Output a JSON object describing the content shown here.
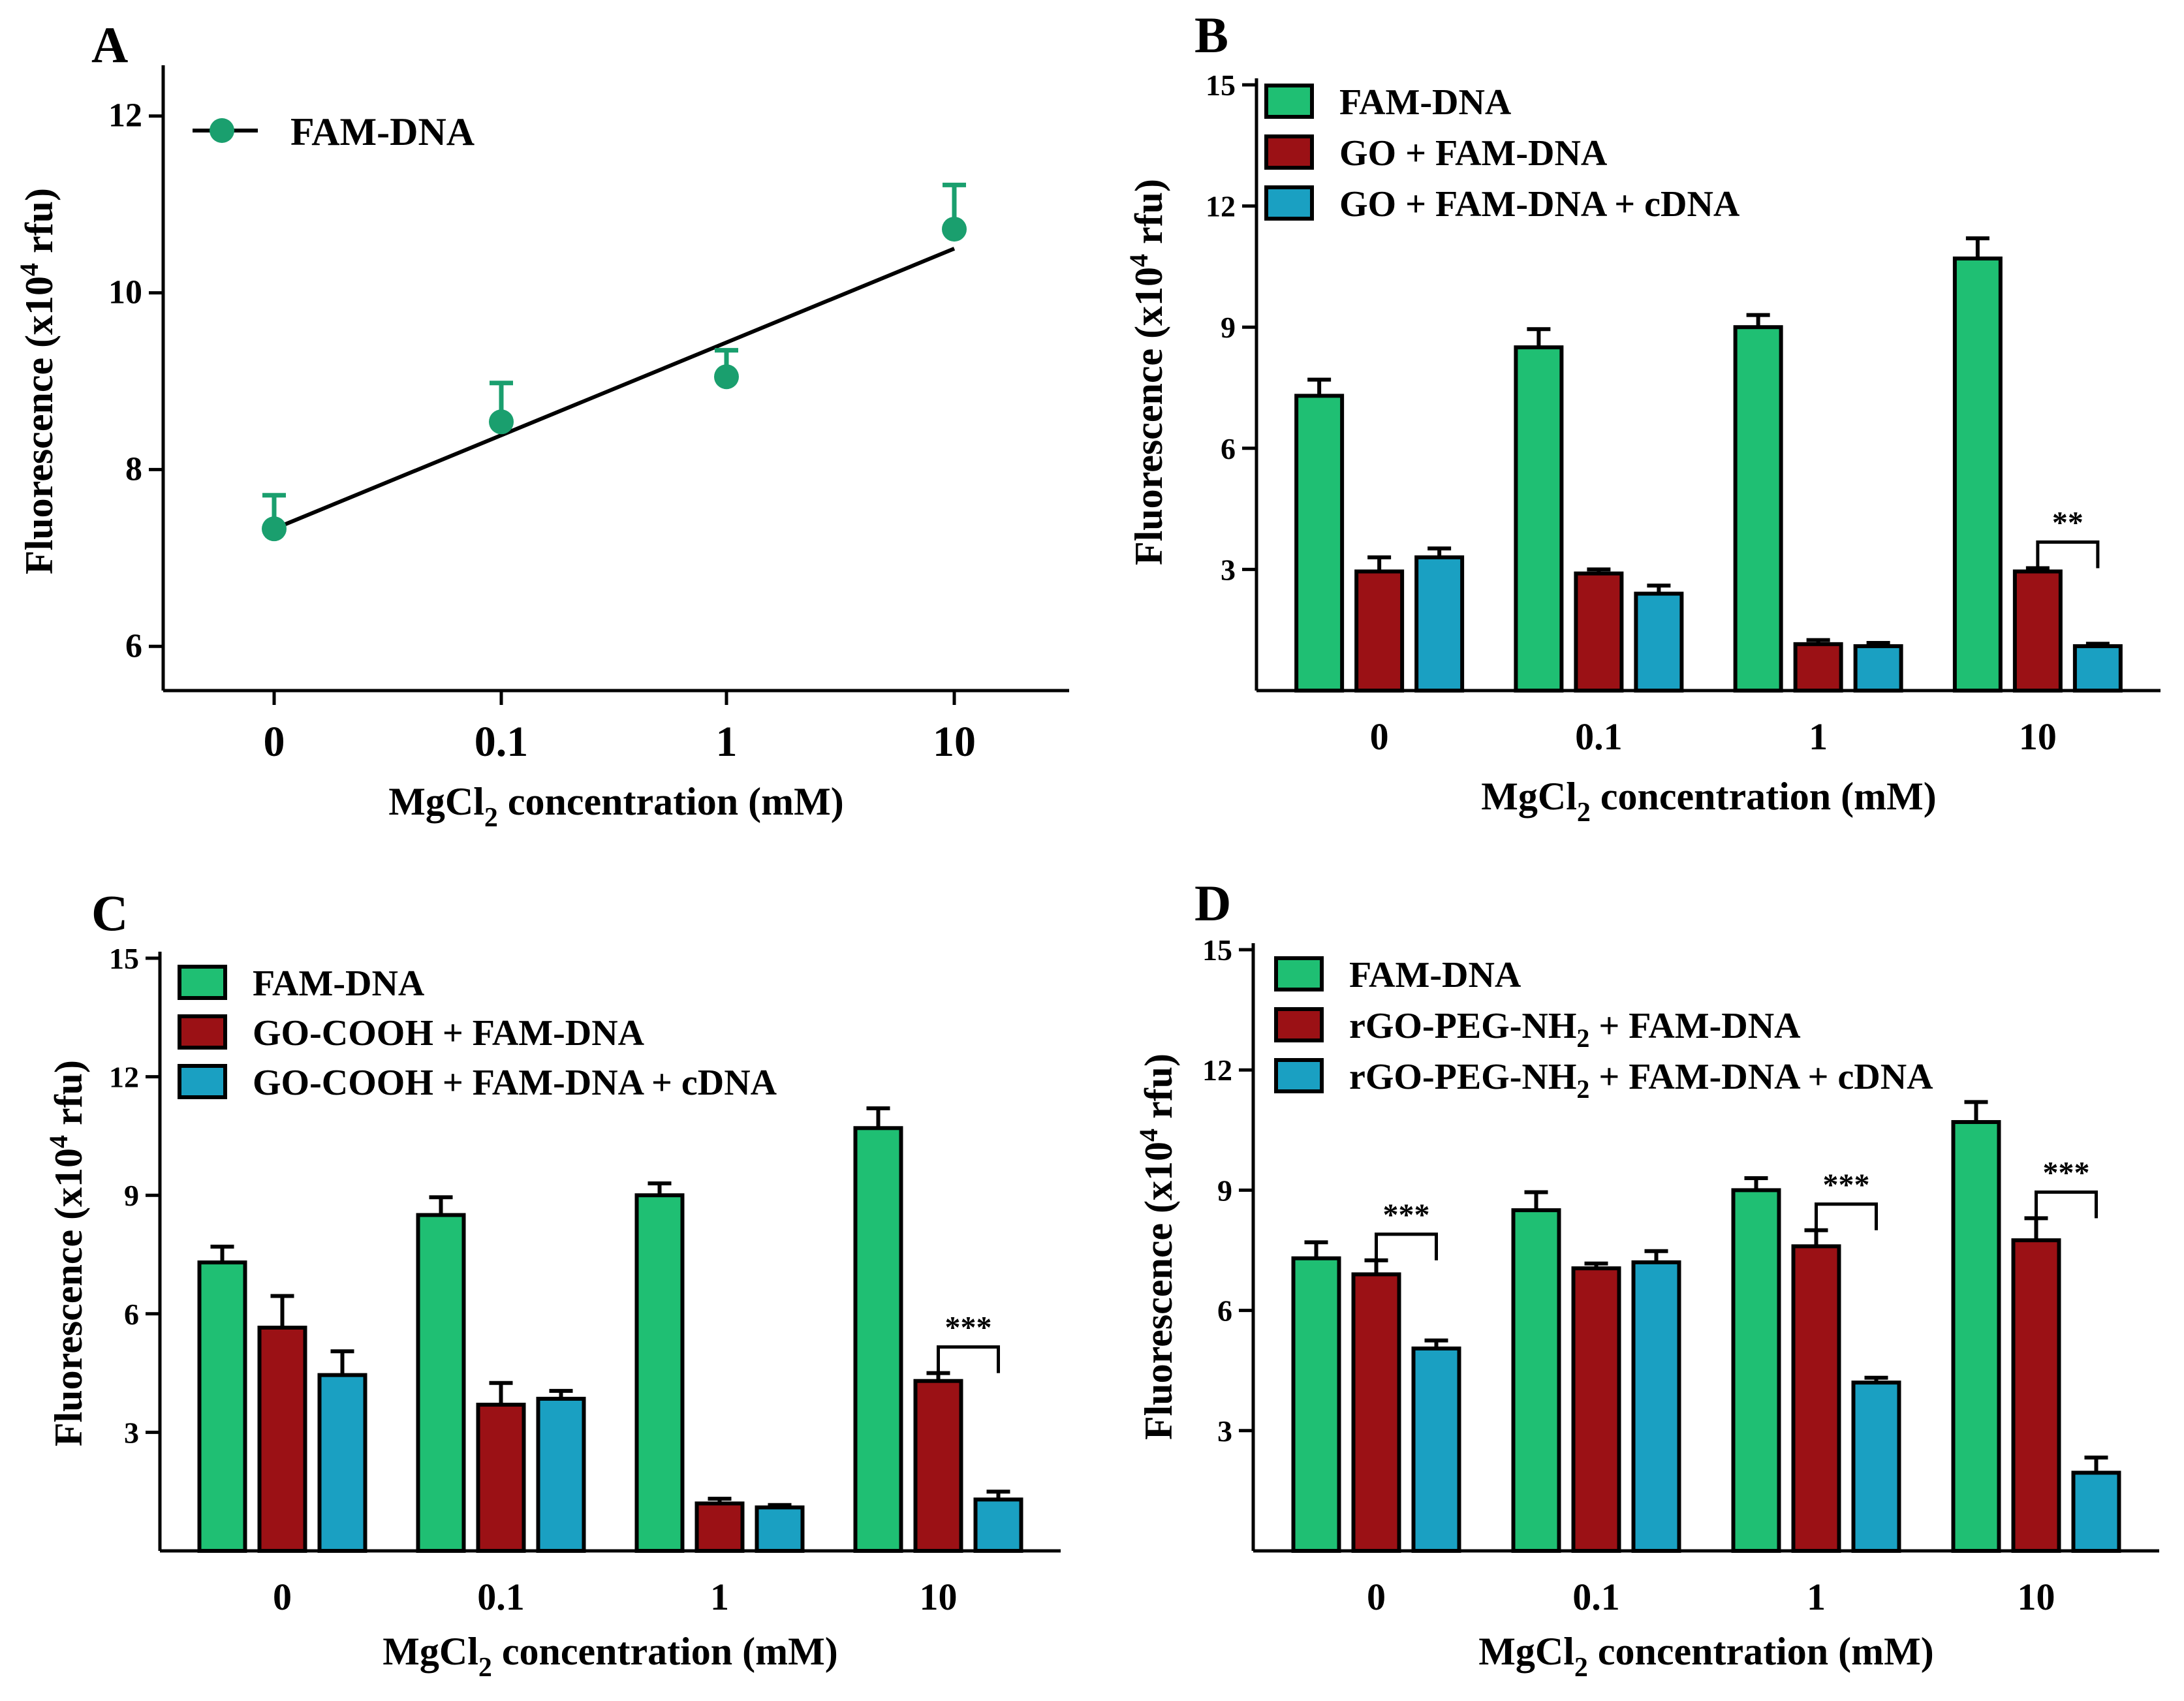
{
  "colors": {
    "green": "#1fbf73",
    "red": "#9b1115",
    "blue": "#1aa0c2",
    "teal_marker": "#1a9f6e",
    "axis": "#000000"
  },
  "chart_data": [
    {
      "id": "A",
      "panel_label": "A",
      "type": "scatter",
      "xlabel_prefix": "MgCl",
      "xlabel_sub": "2",
      "xlabel_suffix": " concentration (mM)",
      "ylabel_prefix": "Fluorescence (x10",
      "ylabel_sup": "4",
      "ylabel_suffix": " rfu)",
      "categories": [
        "0",
        "0.1",
        "1",
        "10"
      ],
      "ylim": [
        5.5,
        12.5
      ],
      "yticks": [
        6,
        8,
        10,
        12
      ],
      "series": [
        {
          "name": "FAM-DNA",
          "color": "#1a9f6e",
          "values": [
            7.33,
            8.54,
            9.05,
            10.72
          ],
          "errors": [
            0.38,
            0.44,
            0.3,
            0.5
          ]
        }
      ],
      "fit_line": {
        "color": "#000000",
        "y_start": 7.33,
        "y_end": 10.5
      },
      "legend_position": "top-left"
    },
    {
      "id": "B",
      "panel_label": "B",
      "type": "bar",
      "xlabel_prefix": "MgCl",
      "xlabel_sub": "2",
      "xlabel_suffix": " concentration (mM)",
      "ylabel_prefix": "Fluorescence (x10",
      "ylabel_sup": "4",
      "ylabel_suffix": " rfu)",
      "categories": [
        "0",
        "0.1",
        "1",
        "10"
      ],
      "ylim": [
        0,
        15
      ],
      "yticks": [
        3,
        6,
        9,
        12,
        15
      ],
      "series": [
        {
          "name": "FAM-DNA",
          "color": "#1fbf73",
          "values": [
            7.3,
            8.5,
            9.0,
            10.7
          ],
          "errors": [
            0.4,
            0.45,
            0.3,
            0.5
          ]
        },
        {
          "name": "GO + FAM-DNA",
          "color": "#9b1115",
          "values": [
            2.95,
            2.9,
            1.15,
            2.95
          ],
          "errors": [
            0.35,
            0.1,
            0.1,
            0.08
          ]
        },
        {
          "name": "GO + FAM-DNA + cDNA",
          "color": "#1aa0c2",
          "values": [
            3.3,
            2.4,
            1.1,
            1.1
          ],
          "errors": [
            0.22,
            0.2,
            0.08,
            0.06
          ]
        }
      ],
      "significance": [
        {
          "category_index": 3,
          "label": "**"
        }
      ],
      "legend_position": "top-left"
    },
    {
      "id": "C",
      "panel_label": "C",
      "type": "bar",
      "xlabel_prefix": "MgCl",
      "xlabel_sub": "2",
      "xlabel_suffix": " concentration (mM)",
      "ylabel_prefix": "Fluorescence (x10",
      "ylabel_sup": "4",
      "ylabel_suffix": " rfu)",
      "categories": [
        "0",
        "0.1",
        "1",
        "10"
      ],
      "ylim": [
        0,
        15
      ],
      "yticks": [
        3,
        6,
        9,
        12,
        15
      ],
      "series": [
        {
          "name": "FAM-DNA",
          "color": "#1fbf73",
          "values": [
            7.3,
            8.5,
            9.0,
            10.7
          ],
          "errors": [
            0.4,
            0.45,
            0.3,
            0.5
          ]
        },
        {
          "name": "GO-COOH + FAM-DNA",
          "color": "#9b1115",
          "values": [
            5.65,
            3.7,
            1.2,
            4.3
          ],
          "errors": [
            0.8,
            0.55,
            0.12,
            0.2
          ]
        },
        {
          "name": "GO-COOH + FAM-DNA + cDNA",
          "color": "#1aa0c2",
          "values": [
            4.45,
            3.85,
            1.1,
            1.3
          ],
          "errors": [
            0.6,
            0.2,
            0.06,
            0.2
          ]
        }
      ],
      "significance": [
        {
          "category_index": 3,
          "label": "***"
        }
      ],
      "legend_position": "top-left"
    },
    {
      "id": "D",
      "panel_label": "D",
      "type": "bar",
      "xlabel_prefix": "MgCl",
      "xlabel_sub": "2",
      "xlabel_suffix": " concentration (mM)",
      "ylabel_prefix": "Fluorescence (x10",
      "ylabel_sup": "4",
      "ylabel_suffix": " rfu)",
      "categories": [
        "0",
        "0.1",
        "1",
        "10"
      ],
      "ylim": [
        0,
        15
      ],
      "yticks": [
        3,
        6,
        9,
        12,
        15
      ],
      "series": [
        {
          "name": "FAM-DNA",
          "color": "#1fbf73",
          "values": [
            7.3,
            8.5,
            9.0,
            10.7
          ],
          "errors": [
            0.4,
            0.45,
            0.3,
            0.5
          ]
        },
        {
          "name": "rGO-PEG-NH2 + FAM-DNA",
          "name_parts": [
            "rGO-PEG-NH",
            "2",
            " + FAM-DNA"
          ],
          "color": "#9b1115",
          "values": [
            6.9,
            7.05,
            7.6,
            7.75
          ],
          "errors": [
            0.35,
            0.12,
            0.4,
            0.55
          ]
        },
        {
          "name": "rGO-PEG-NH2 + FAM-DNA + cDNA",
          "name_parts": [
            "rGO-PEG-NH",
            "2",
            " + FAM-DNA + cDNA"
          ],
          "color": "#1aa0c2",
          "values": [
            5.05,
            7.2,
            4.2,
            1.95
          ],
          "errors": [
            0.2,
            0.28,
            0.12,
            0.38
          ]
        }
      ],
      "significance": [
        {
          "category_index": 0,
          "label": "***"
        },
        {
          "category_index": 2,
          "label": "***"
        },
        {
          "category_index": 3,
          "label": "***"
        }
      ],
      "legend_position": "top-left"
    }
  ]
}
